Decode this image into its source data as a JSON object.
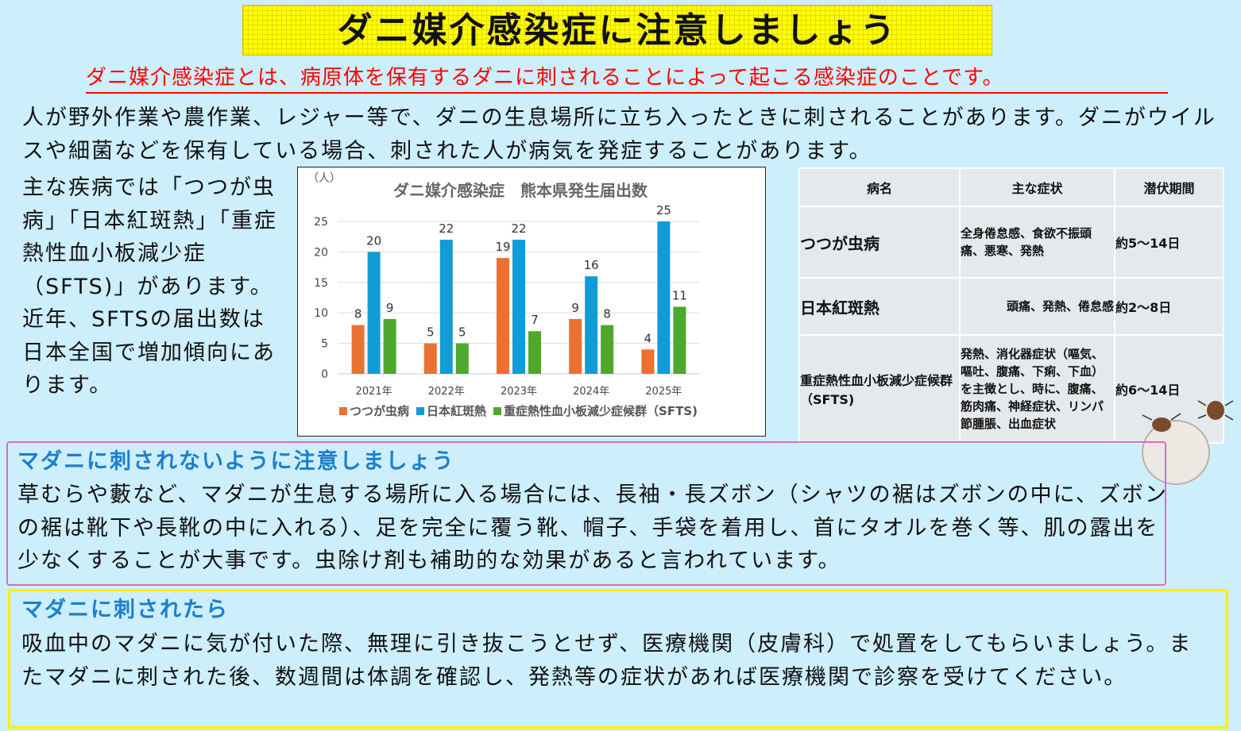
{
  "title": "ダニ媒介感染症に注意しましょう",
  "subtitle": "ダニ媒介感染症とは、病原体を保有するダニに刺されることによって起こる感染症のことです。",
  "intro": "人が野外作業や農作業、レジャー等で、ダニの生息場所に立ち入ったときに刺されることがあります。ダニがウイルスや細菌などを保有している場合、刺された人が病気を発症することがあります。",
  "left_text": "主な疾病では「つつが虫病」「日本紅斑熱」「重症熱性血小板減少症（SFTS)」があります。近年、SFTSの届出数は日本全国で増加傾向にあります。",
  "chart_data": {
    "type": "bar",
    "title": "ダニ媒介感染症　熊本県発生届出数",
    "ylabel": "（人）",
    "categories": [
      "2021年",
      "2022年",
      "2023年",
      "2024年",
      "2025年"
    ],
    "ylim": [
      0,
      25
    ],
    "yticks": [
      0,
      5,
      10,
      15,
      20,
      25
    ],
    "grid": true,
    "legend": "bottom",
    "series": [
      {
        "name": "つつが虫病",
        "color": "#e97132",
        "values": [
          8,
          5,
          19,
          9,
          4
        ]
      },
      {
        "name": "日本紅斑熱",
        "color": "#119cd6",
        "values": [
          20,
          22,
          22,
          16,
          25
        ]
      },
      {
        "name": "重症熱性血小板減少症候群（SFTS)",
        "color": "#4ea72e",
        "values": [
          9,
          5,
          7,
          8,
          11
        ]
      }
    ]
  },
  "table": {
    "headers": [
      "病名",
      "主な症状",
      "潜伏期間"
    ],
    "rows": [
      {
        "name": "つつが虫病",
        "symptoms": "全身倦怠感、食欲不振頭痛、悪寒、発熱",
        "period": "約5～14日"
      },
      {
        "name": "日本紅斑熱",
        "symptoms": "頭痛、発熱、倦怠感",
        "period": "約2～8日"
      },
      {
        "name": "重症熱性血小板減少症候群（SFTS)",
        "symptoms": "発熱、消化器症状（嘔気、嘔吐、腹痛、下痢、下血）を主徴とし、時に、腹痛、筋肉痛、神経症状、リンパ節腫脹、出血症状",
        "period": "約6～14日"
      }
    ]
  },
  "section1": {
    "heading": "マダニに刺されないように注意しましょう",
    "body": "草むらや藪など、マダニが生息する場所に入る場合には、長袖・長ズボン（シャツの裾はズボンの中に、ズボンの裾は靴下や長靴の中に入れる）、足を完全に覆う靴、帽子、手袋を着用し、首にタオルを巻く等、肌の露出を少なくすることが大事です。虫除け剤も補助的な効果があると言われています。"
  },
  "section2": {
    "heading": "マダニに刺されたら",
    "body": "吸血中のマダニに気が付いた際、無理に引き抜こうとせず、医療機関（皮膚科）で処置をしてもらいましょう。またマダニに刺された後、数週間は体調を確認し、発熱等の症状があれば医療機関で診察を受けてください。"
  }
}
